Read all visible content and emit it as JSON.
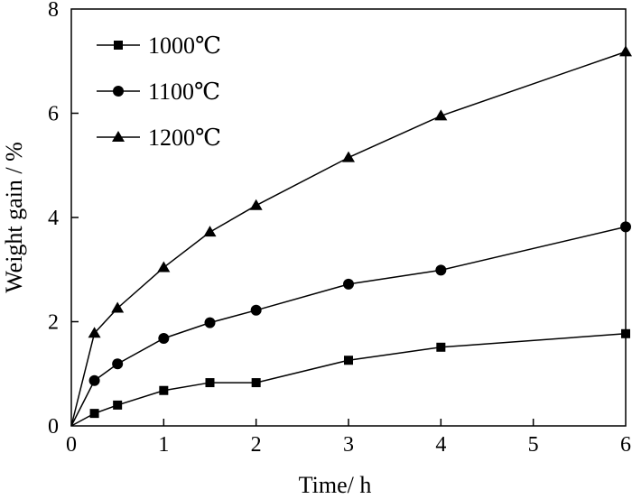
{
  "chart_data": {
    "type": "line",
    "title": "",
    "xlabel": "Time/ h",
    "ylabel": "Weight gain / %",
    "xlim": [
      0,
      6
    ],
    "ylim": [
      0,
      8
    ],
    "xticks": [
      "0",
      "1",
      "2",
      "3",
      "4",
      "5",
      "6"
    ],
    "yticks": [
      "0",
      "2",
      "4",
      "6",
      "8"
    ],
    "grid": false,
    "legend_position": "top-left",
    "series": [
      {
        "name": "1000℃",
        "marker": "square",
        "color": "#000000",
        "x": [
          0,
          0.25,
          0.5,
          1,
          1.5,
          2,
          3,
          4,
          6
        ],
        "y": [
          0,
          0.24,
          0.4,
          0.68,
          0.83,
          0.83,
          1.26,
          1.51,
          1.77
        ]
      },
      {
        "name": "1100℃",
        "marker": "circle",
        "color": "#000000",
        "x": [
          0,
          0.25,
          0.5,
          1,
          1.5,
          2,
          3,
          4,
          6
        ],
        "y": [
          0,
          0.87,
          1.19,
          1.68,
          1.98,
          2.22,
          2.72,
          2.99,
          3.82
        ]
      },
      {
        "name": "1200℃",
        "marker": "triangle",
        "color": "#000000",
        "x": [
          0,
          0.25,
          0.5,
          1,
          1.5,
          2,
          3,
          4,
          6
        ],
        "y": [
          0,
          1.78,
          2.26,
          3.04,
          3.72,
          4.23,
          5.15,
          5.95,
          7.18
        ]
      }
    ]
  }
}
